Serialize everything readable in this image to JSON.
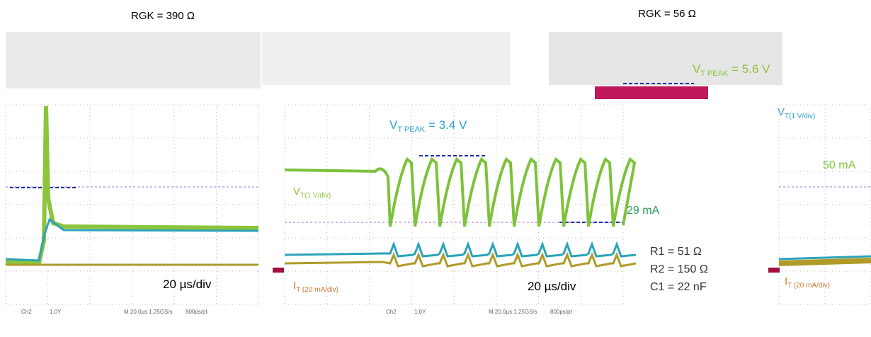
{
  "header": {
    "left_title": "RGK = 390 Ω",
    "right_title": "RGK = 56 Ω"
  },
  "left_panel": {
    "timebase": "20 µs/div",
    "footer": {
      "channel": "Ch2",
      "scale": "1.0Y",
      "acq": "M 20.0µs 1.25GS/s",
      "rate": "800ps/pt"
    }
  },
  "middle_panel": {
    "peak": {
      "main": "V",
      "sub": "T PEAK",
      "rest": " = 3.4 V"
    },
    "voltage_label": {
      "main": "V",
      "sub": "T(1 V/div)"
    },
    "current_label": {
      "main": "I",
      "sub": "T (20 mA/div)"
    },
    "current_value": "29 mA",
    "timebase": "20 µs/div",
    "components": [
      "R1 = 51 Ω",
      "R2 = 150 Ω",
      "C1 = 22 nF"
    ],
    "footer": {
      "channel": "Ch2",
      "scale": "1.0Y",
      "acq": "M 20.0µs 1.25GS/s",
      "rate": "800ps/pt"
    }
  },
  "right_panel": {
    "peak": {
      "main": "V",
      "sub": "T PEAK",
      "rest": " = 5.6 V"
    },
    "voltage_label": {
      "main": "V",
      "sub": "T(1 V/div)"
    },
    "current_value": "50 mA",
    "current_label": {
      "main": "I",
      "sub": "T (20 mA/div)"
    }
  }
}
